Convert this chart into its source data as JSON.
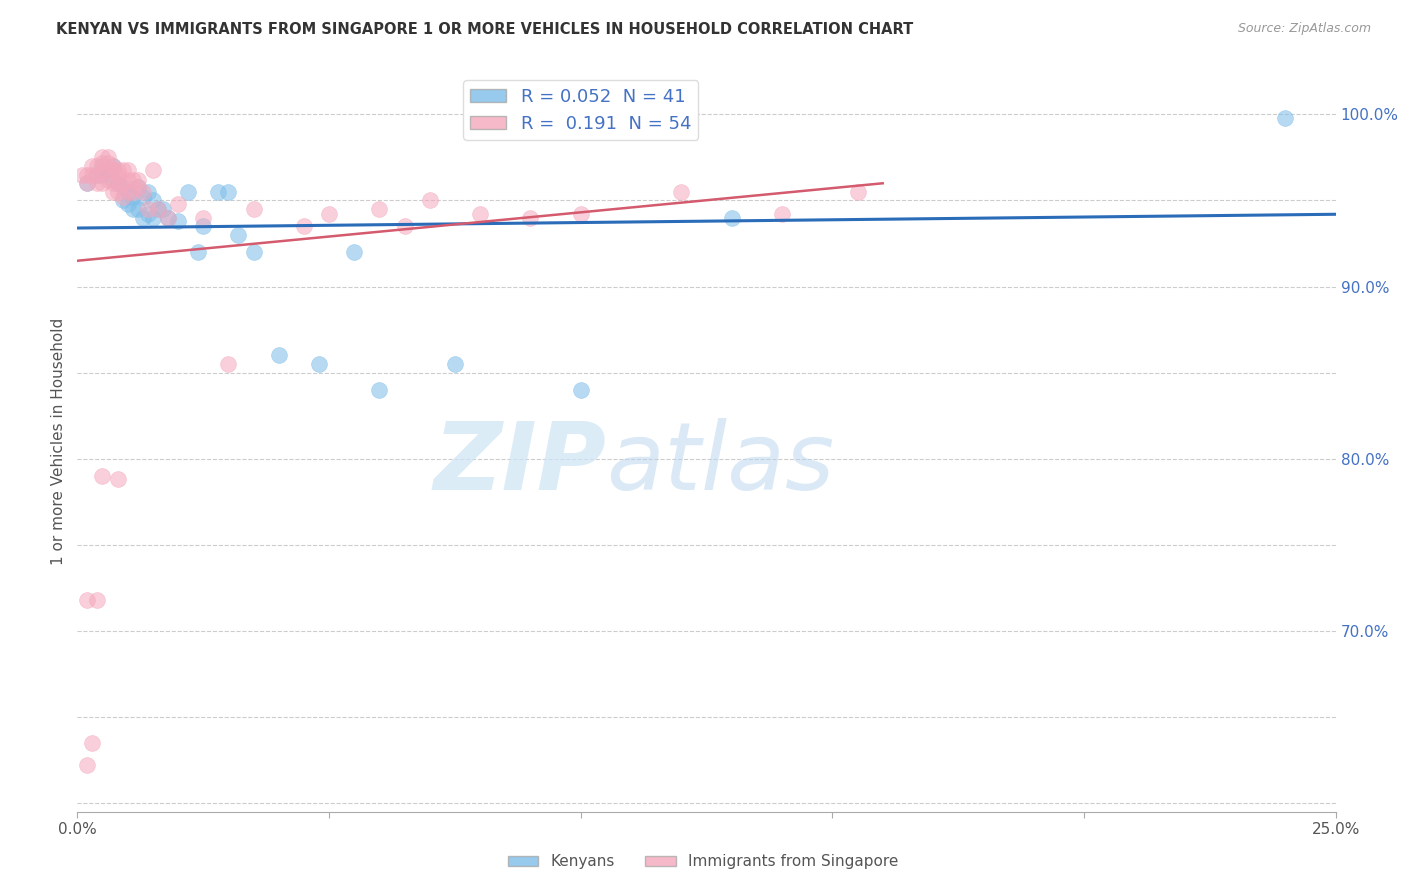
{
  "title": "KENYAN VS IMMIGRANTS FROM SINGAPORE 1 OR MORE VEHICLES IN HOUSEHOLD CORRELATION CHART",
  "source": "Source: ZipAtlas.com",
  "ylabel": "1 or more Vehicles in Household",
  "xmin": 0.0,
  "xmax": 0.25,
  "ymin": 0.595,
  "ymax": 1.025,
  "blue_R": 0.052,
  "blue_N": 41,
  "pink_R": 0.191,
  "pink_N": 54,
  "blue_color": "#7dbde8",
  "pink_color": "#f4a8bc",
  "blue_line_color": "#2b6cb8",
  "pink_line_color": "#d45a6e",
  "grid_color": "#cccccc",
  "background_color": "#ffffff",
  "watermark_zip": "ZIP",
  "watermark_atlas": "atlas",
  "blue_scatter_x": [
    0.002,
    0.004,
    0.005,
    0.005,
    0.006,
    0.007,
    0.007,
    0.008,
    0.009,
    0.009,
    0.01,
    0.01,
    0.011,
    0.011,
    0.012,
    0.012,
    0.013,
    0.013,
    0.014,
    0.014,
    0.015,
    0.015,
    0.016,
    0.017,
    0.018,
    0.02,
    0.022,
    0.024,
    0.025,
    0.028,
    0.03,
    0.032,
    0.035,
    0.04,
    0.048,
    0.055,
    0.06,
    0.075,
    0.1,
    0.13,
    0.24
  ],
  "blue_scatter_y": [
    0.96,
    0.965,
    0.965,
    0.97,
    0.968,
    0.97,
    0.962,
    0.96,
    0.958,
    0.95,
    0.955,
    0.948,
    0.952,
    0.945,
    0.958,
    0.945,
    0.952,
    0.94,
    0.955,
    0.942,
    0.95,
    0.94,
    0.945,
    0.945,
    0.94,
    0.938,
    0.955,
    0.92,
    0.935,
    0.955,
    0.955,
    0.93,
    0.92,
    0.86,
    0.855,
    0.92,
    0.84,
    0.855,
    0.84,
    0.94,
    0.998
  ],
  "pink_scatter_x": [
    0.001,
    0.002,
    0.002,
    0.003,
    0.003,
    0.004,
    0.004,
    0.004,
    0.005,
    0.005,
    0.005,
    0.005,
    0.006,
    0.006,
    0.006,
    0.006,
    0.007,
    0.007,
    0.007,
    0.007,
    0.008,
    0.008,
    0.008,
    0.008,
    0.009,
    0.009,
    0.009,
    0.01,
    0.01,
    0.01,
    0.011,
    0.011,
    0.012,
    0.012,
    0.013,
    0.014,
    0.015,
    0.016,
    0.018,
    0.02,
    0.025,
    0.03,
    0.035,
    0.045,
    0.05,
    0.06,
    0.065,
    0.07,
    0.08,
    0.09,
    0.1,
    0.12,
    0.14,
    0.155
  ],
  "pink_scatter_y": [
    0.965,
    0.965,
    0.96,
    0.97,
    0.965,
    0.97,
    0.965,
    0.96,
    0.975,
    0.972,
    0.968,
    0.96,
    0.975,
    0.972,
    0.968,
    0.962,
    0.97,
    0.968,
    0.96,
    0.955,
    0.968,
    0.965,
    0.96,
    0.955,
    0.968,
    0.96,
    0.952,
    0.968,
    0.962,
    0.955,
    0.962,
    0.955,
    0.962,
    0.958,
    0.955,
    0.945,
    0.968,
    0.945,
    0.94,
    0.948,
    0.94,
    0.855,
    0.945,
    0.935,
    0.942,
    0.945,
    0.935,
    0.95,
    0.942,
    0.94,
    0.942,
    0.955,
    0.942,
    0.955
  ],
  "pink_low_x": [
    0.002,
    0.002,
    0.003,
    0.004,
    0.005,
    0.008
  ],
  "pink_low_y": [
    0.718,
    0.622,
    0.635,
    0.718,
    0.79,
    0.788
  ],
  "blue_line_x0": 0.0,
  "blue_line_x1": 0.25,
  "blue_line_y0": 0.934,
  "blue_line_y1": 0.942,
  "pink_line_x0": 0.0,
  "pink_line_x1": 0.16,
  "pink_line_y0": 0.915,
  "pink_line_y1": 0.96
}
